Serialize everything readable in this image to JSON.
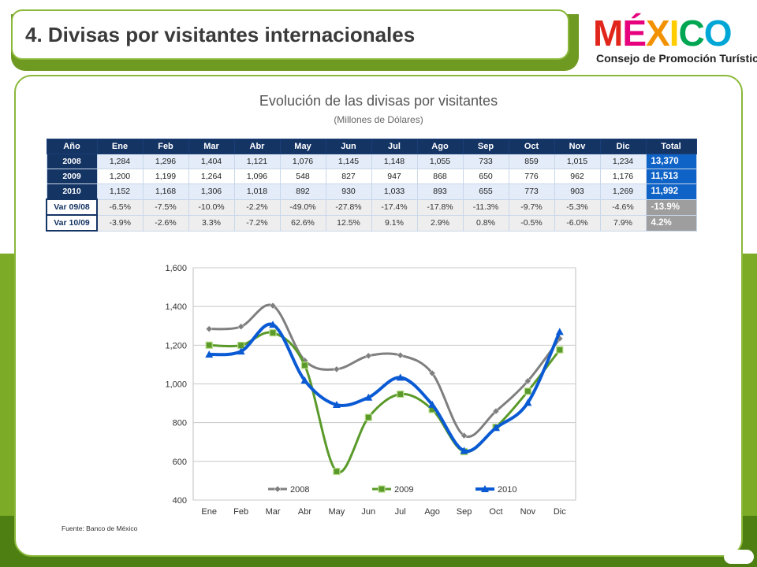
{
  "slide": {
    "title": "4. Divisas por visitantes internacionales",
    "logo_text": "MÉXICO",
    "logo_subtitle": "Consejo de Promoción Turística",
    "source": "Fuente: Banco de México"
  },
  "colors": {
    "green": "#7cab28",
    "navy": "#143464",
    "blue": "#0f63c7",
    "grey_series": "#7f7f7f",
    "green_series": "#5a9a2a",
    "blue_series": "#0a5ad4"
  },
  "table": {
    "title": "Evolución de las divisas por visitantes",
    "subtitle": "(Millones de Dólares)",
    "headers": [
      "Año",
      "Ene",
      "Feb",
      "Mar",
      "Abr",
      "May",
      "Jun",
      "Jul",
      "Ago",
      "Sep",
      "Oct",
      "Nov",
      "Dic",
      "Total"
    ],
    "rows": [
      {
        "label": "2008",
        "values": [
          "1,284",
          "1,296",
          "1,404",
          "1,121",
          "1,076",
          "1,145",
          "1,148",
          "1,055",
          "733",
          "859",
          "1,015",
          "1,234"
        ],
        "total": "13,370"
      },
      {
        "label": "2009",
        "values": [
          "1,200",
          "1,199",
          "1,264",
          "1,096",
          "548",
          "827",
          "947",
          "868",
          "650",
          "776",
          "962",
          "1,176"
        ],
        "total": "11,513"
      },
      {
        "label": "2010",
        "values": [
          "1,152",
          "1,168",
          "1,306",
          "1,018",
          "892",
          "930",
          "1,033",
          "893",
          "655",
          "773",
          "903",
          "1,269"
        ],
        "total": "11,992"
      },
      {
        "label": "Var 09/08",
        "values": [
          "-6.5%",
          "-7.5%",
          "-10.0%",
          "-2.2%",
          "-49.0%",
          "-27.8%",
          "-17.4%",
          "-17.8%",
          "-11.3%",
          "-9.7%",
          "-5.3%",
          "-4.6%"
        ],
        "total": "-13.9%"
      },
      {
        "label": "Var 10/09",
        "values": [
          "-3.9%",
          "-2.6%",
          "3.3%",
          "-7.2%",
          "62.6%",
          "12.5%",
          "9.1%",
          "2.9%",
          "0.8%",
          "-0.5%",
          "-6.0%",
          "7.9%"
        ],
        "total": "4.2%"
      }
    ]
  },
  "chart_data": {
    "type": "line",
    "categories": [
      "Ene",
      "Feb",
      "Mar",
      "Abr",
      "May",
      "Jun",
      "Jul",
      "Ago",
      "Sep",
      "Oct",
      "Nov",
      "Dic"
    ],
    "ylim": [
      400,
      1600
    ],
    "yticks": [
      "400",
      "600",
      "800",
      "1,000",
      "1,200",
      "1,400",
      "1,600"
    ],
    "grid": true,
    "legend": "bottom",
    "series": [
      {
        "name": "2008",
        "color": "#7f7f7f",
        "marker": "diamond",
        "values": [
          1284,
          1296,
          1404,
          1121,
          1076,
          1145,
          1148,
          1055,
          733,
          859,
          1015,
          1234
        ]
      },
      {
        "name": "2009",
        "color": "#5a9a2a",
        "marker": "square",
        "values": [
          1200,
          1199,
          1264,
          1096,
          548,
          827,
          947,
          868,
          650,
          776,
          962,
          1176
        ]
      },
      {
        "name": "2010",
        "color": "#0a5ad4",
        "marker": "triangle",
        "values": [
          1152,
          1168,
          1306,
          1018,
          892,
          930,
          1033,
          893,
          655,
          773,
          903,
          1269
        ]
      }
    ]
  }
}
